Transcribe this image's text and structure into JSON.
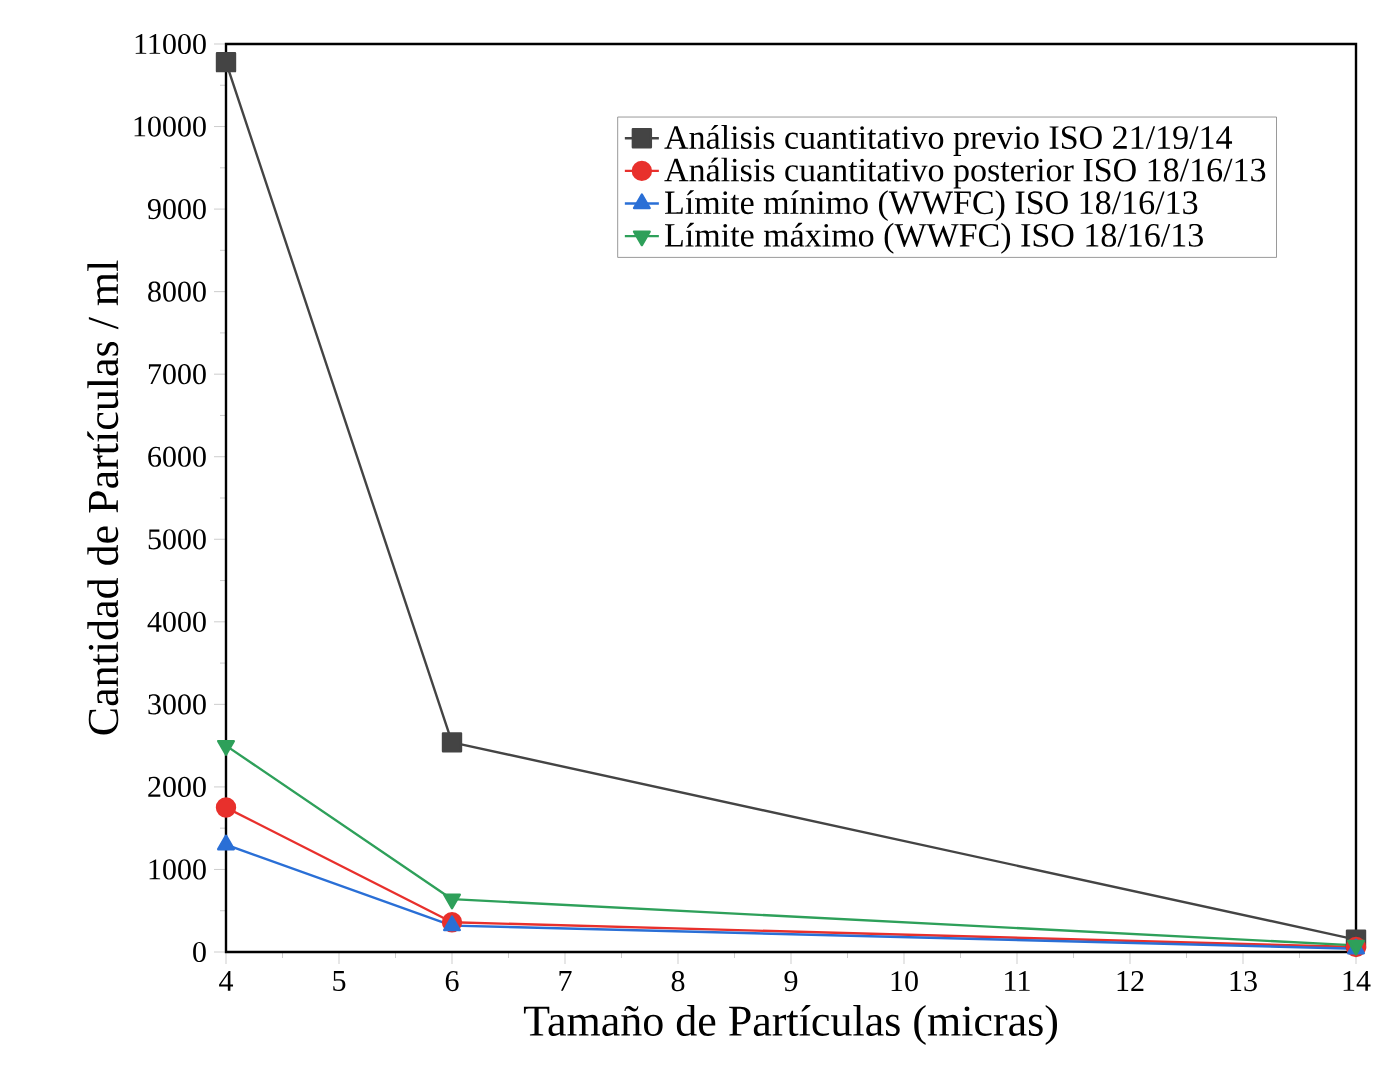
{
  "chart_data": {
    "type": "line",
    "xlabel": "Tamaño de Partículas (micras)",
    "ylabel": "Cantidad de Partículas / ml",
    "x": [
      4,
      6,
      14
    ],
    "series": [
      {
        "name": "Análisis cuantitativo previo ISO 21/19/14",
        "color": "#444444",
        "marker": "square",
        "values": [
          10780,
          2540,
          150
        ]
      },
      {
        "name": "Análisis cuantitativo posterior ISO 18/16/13",
        "color": "#e8302c",
        "marker": "circle",
        "values": [
          1750,
          360,
          60
        ]
      },
      {
        "name": "Límite mínimo (WWFC) ISO 18/16/13",
        "color": "#2a6fd6",
        "marker": "triangle",
        "values": [
          1300,
          320,
          40
        ]
      },
      {
        "name": "Límite máximo (WWFC) ISO 18/16/13",
        "color": "#2ea05a",
        "marker": "triangle-down",
        "values": [
          2500,
          640,
          80
        ]
      }
    ],
    "xlim": [
      4,
      14
    ],
    "xticks": [
      4,
      5,
      6,
      7,
      8,
      9,
      10,
      11,
      12,
      13,
      14
    ],
    "ylim": [
      0,
      11000
    ],
    "yticks": [
      0,
      1000,
      2000,
      3000,
      4000,
      5000,
      6000,
      7000,
      8000,
      9000,
      10000,
      11000
    ],
    "grid": false,
    "legend": "top right",
    "line_style": "solid"
  }
}
